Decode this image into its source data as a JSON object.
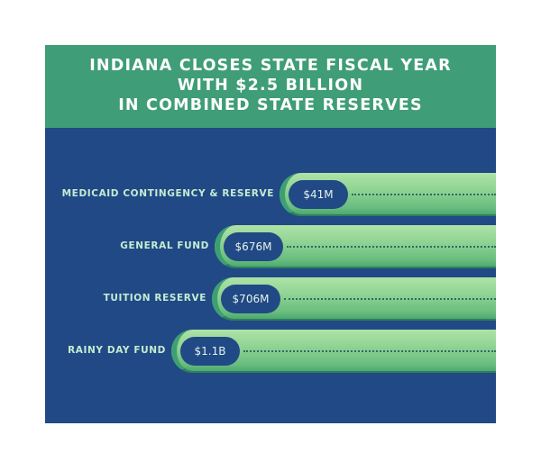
{
  "chart_data": {
    "type": "bar",
    "title_lines": [
      "INDIANA CLOSES STATE FISCAL YEAR",
      "WITH $2.5 BILLION",
      "IN COMBINED STATE RESERVES"
    ],
    "categories": [
      "MEDICAID CONTINGENCY & RESERVE",
      "GENERAL FUND",
      "TUITION RESERVE",
      "RAINY DAY FUND"
    ],
    "value_labels": [
      "$41M",
      "$676M",
      "$706M",
      "$1.1B"
    ],
    "values_millions": [
      41,
      676,
      706,
      1100
    ],
    "orientation": "horizontal"
  },
  "colors": {
    "header_bg": "#3f9d77",
    "panel_bg": "#214985",
    "bar_green": "#8fd394",
    "label_text": "#c4ecd2"
  }
}
